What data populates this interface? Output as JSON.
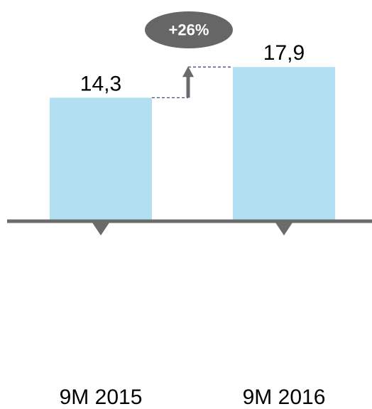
{
  "chart_data": {
    "type": "bar",
    "categories": [
      "9M 2015",
      "9M 2016"
    ],
    "values": [
      14.3,
      17.9
    ],
    "value_labels": [
      "14,3",
      "17,9"
    ],
    "title": "",
    "xlabel": "",
    "ylabel": "",
    "ylim": [
      0,
      20
    ],
    "grid": false,
    "legend": "none",
    "annotation": {
      "text": "+26%",
      "type": "growth-arrow"
    }
  },
  "colors": {
    "bar": "#b3dff3",
    "axis": "#6b6b6b",
    "badge": "#666666",
    "badge_text": "#ffffff",
    "dashed_line": "#4a4a8a",
    "arrow": "#6b6b6b"
  }
}
